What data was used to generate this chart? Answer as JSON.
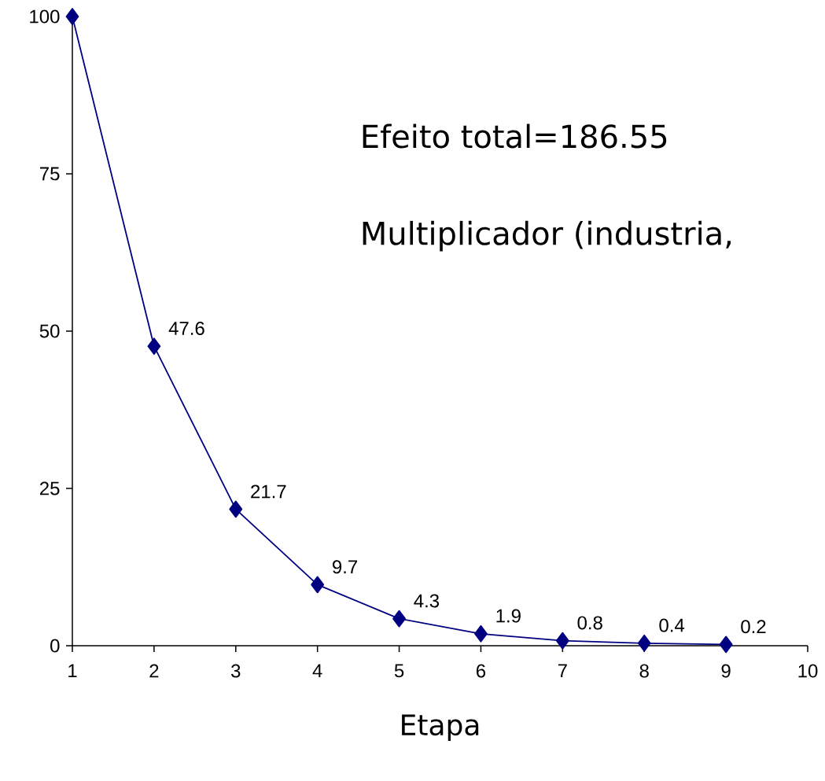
{
  "chart_data": {
    "type": "line",
    "xlabel": "Etapa",
    "x": [
      1,
      2,
      3,
      4,
      5,
      6,
      7,
      8,
      9
    ],
    "series": [
      {
        "color": "#000080",
        "values": [
          100,
          47.6,
          21.7,
          9.7,
          4.3,
          1.9,
          0.8,
          0.4,
          0.2
        ],
        "value_labels": [
          null,
          "47.6",
          "21.7",
          "9.7",
          "4.3",
          "1.9",
          "0.8",
          "0.4",
          "0.2"
        ]
      }
    ],
    "xlim": [
      1,
      10
    ],
    "xticks": [
      1,
      2,
      3,
      4,
      5,
      6,
      7,
      8,
      9,
      10
    ],
    "ylim": [
      0,
      100
    ],
    "yticks": [
      0,
      25,
      50,
      75,
      100
    ],
    "marker": "diamond",
    "line_style": "solid",
    "annotations": [
      "Efeito total=186.55",
      "Multiplicador (industria,"
    ]
  }
}
